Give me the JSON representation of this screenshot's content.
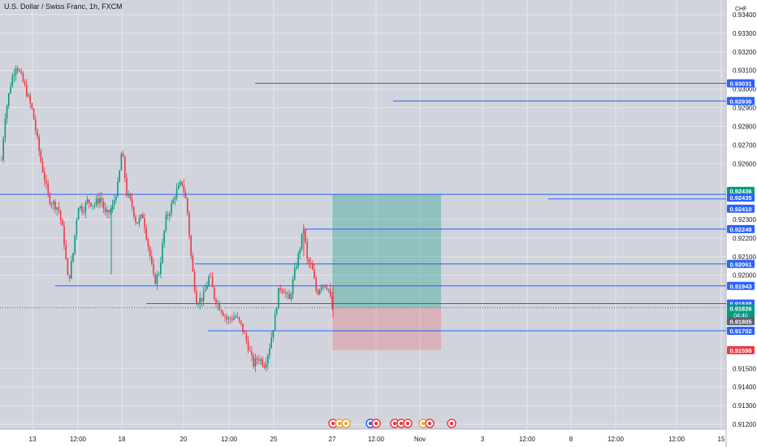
{
  "header": {
    "symbol": "U.S. Dollar / Swiss Franc",
    "interval": "1h",
    "exchange": "FXCM",
    "currency": "CHF"
  },
  "chart_data": {
    "type": "candlestick",
    "y_axis": {
      "ticks": [
        "0.93400",
        "0.93300",
        "0.93200",
        "0.93100",
        "0.93000",
        "0.92900",
        "0.92800",
        "0.92700",
        "0.92600",
        "0.92300",
        "0.92200",
        "0.92100",
        "0.92000",
        "0.91500",
        "0.91400",
        "0.91300",
        "0.91200"
      ],
      "range": [
        0.91175,
        0.935
      ]
    },
    "x_axis": {
      "ticks": [
        "13",
        "12:00",
        "18",
        "20",
        "12:00",
        "25",
        "27",
        "12:00",
        "Nov",
        "3",
        "12:00",
        "8",
        "12:00",
        "12:00",
        "15"
      ]
    },
    "price_lines": [
      {
        "label": "0.93031",
        "value": 0.93031,
        "color": "#2962ff"
      },
      {
        "label": "0.92936",
        "value": 0.92936,
        "color": "#2962ff"
      },
      {
        "label": "0.92436",
        "value": 0.92436,
        "color": "#089981"
      },
      {
        "label": "0.92435",
        "value": 0.92435,
        "color": "#2962ff"
      },
      {
        "label": "0.92410",
        "value": 0.9241,
        "color": "#2962ff"
      },
      {
        "label": "0.92248",
        "value": 0.92248,
        "color": "#2962ff"
      },
      {
        "label": "0.92061",
        "value": 0.92061,
        "color": "#2962ff"
      },
      {
        "label": "0.91943",
        "value": 0.91943,
        "color": "#2962ff"
      },
      {
        "label": "0.91848",
        "value": 0.91848,
        "color": "#2962ff"
      },
      {
        "label": "0.91826",
        "value": 0.91826,
        "color": "#089981",
        "sublabel": "04:40"
      },
      {
        "label": "0.91805",
        "value": 0.91805,
        "color": "#5d606b"
      },
      {
        "label": "0.91702",
        "value": 0.91702,
        "color": "#2962ff"
      },
      {
        "label": "0.91598",
        "value": 0.91598,
        "color": "#f23645"
      }
    ],
    "position": {
      "entry": 0.91826,
      "target": 0.92436,
      "stop": 0.91598
    },
    "candles_summary": {
      "start_price": 0.9262,
      "high": 0.93135,
      "low": 0.91505,
      "last": 0.91826
    },
    "colors": {
      "up": "#089981",
      "down": "#f23645",
      "grid": "#e6e8ee",
      "line": "#2962ff"
    }
  }
}
